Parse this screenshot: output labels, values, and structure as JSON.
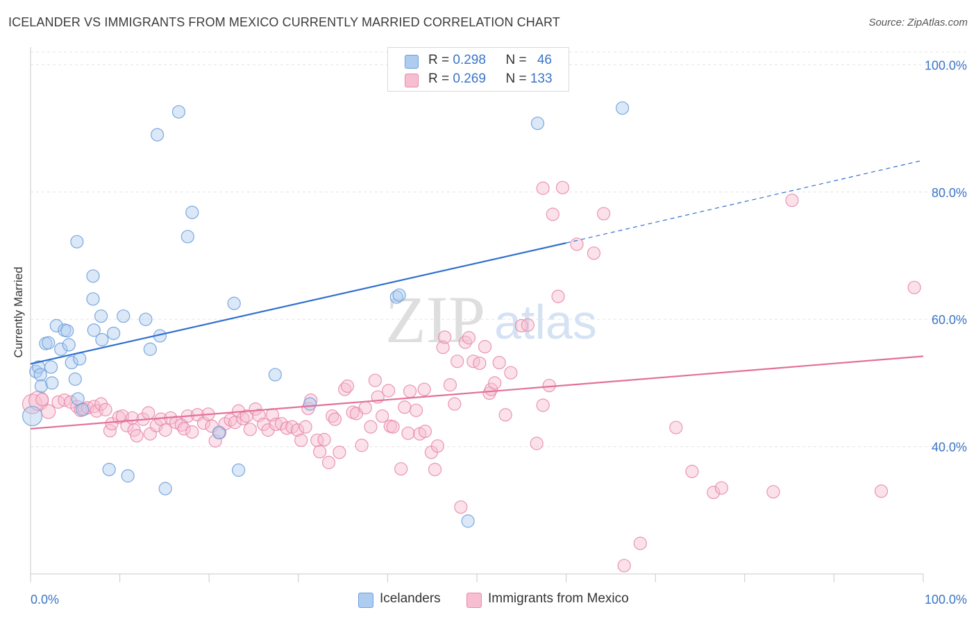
{
  "header": {
    "title": "ICELANDER VS IMMIGRANTS FROM MEXICO CURRENTLY MARRIED CORRELATION CHART",
    "source": "Source: ZipAtlas.com"
  },
  "watermark": {
    "zip": "ZIP",
    "atlas": "atlas"
  },
  "legend": {
    "rows": [
      {
        "r_label": "R = ",
        "r_value": "0.298",
        "n_label": "N = ",
        "n_value": "46",
        "color": "#aecbf0",
        "border": "#6f9fdc"
      },
      {
        "r_label": "R = ",
        "r_value": "0.269",
        "n_label": "N = ",
        "n_value": "133",
        "color": "#f7bdd0",
        "border": "#e88aaa"
      }
    ]
  },
  "bottom_legend": [
    {
      "label": "Icelanders",
      "color": "#aecbf0",
      "border": "#6f9fdc"
    },
    {
      "label": "Immigrants from Mexico",
      "color": "#f7bdd0",
      "border": "#e88aaa"
    }
  ],
  "chart_data": {
    "type": "scatter",
    "title": "ICELANDER VS IMMIGRANTS FROM MEXICO CURRENTLY MARRIED CORRELATION CHART",
    "xlabel": "",
    "ylabel": "Currently Married",
    "x_tick_labels": [
      "0.0%",
      "100.0%"
    ],
    "y_tick_labels": [
      "40.0%",
      "60.0%",
      "80.0%",
      "100.0%"
    ],
    "y_ticks": [
      40,
      60,
      80,
      100
    ],
    "xlim": [
      0,
      100
    ],
    "ylim": [
      20,
      102
    ],
    "grid": "horizontal dashed",
    "legend_position": "top-center",
    "series": [
      {
        "name": "Icelanders",
        "color": "#6f9fdc",
        "fill": "#aecbf0",
        "trend_color": "#2f6fcf",
        "trend": {
          "x0": 0,
          "y0": 53.0,
          "x1": 60,
          "y1": 72.0,
          "dashed_to_x": 100,
          "dashed_to_y": 85.0
        },
        "points": [
          [
            0.2,
            44.8,
            "l"
          ],
          [
            0.6,
            51.8
          ],
          [
            0.9,
            52.5
          ],
          [
            1.1,
            51.3
          ],
          [
            1.2,
            49.5
          ],
          [
            1.7,
            56.2
          ],
          [
            2.0,
            56.3
          ],
          [
            2.3,
            52.5
          ],
          [
            2.4,
            50.0
          ],
          [
            2.9,
            59.0
          ],
          [
            3.4,
            55.3
          ],
          [
            3.8,
            58.3
          ],
          [
            4.1,
            58.2
          ],
          [
            4.3,
            56.0
          ],
          [
            4.6,
            53.2
          ],
          [
            5.0,
            50.6
          ],
          [
            5.3,
            47.5
          ],
          [
            5.5,
            53.8
          ],
          [
            5.8,
            45.8
          ],
          [
            5.2,
            72.2
          ],
          [
            7.0,
            63.2
          ],
          [
            7.0,
            66.8
          ],
          [
            7.1,
            58.3
          ],
          [
            7.9,
            60.5
          ],
          [
            8.0,
            56.8
          ],
          [
            9.3,
            57.8
          ],
          [
            10.4,
            60.5
          ],
          [
            12.9,
            60.0
          ],
          [
            13.4,
            55.3
          ],
          [
            14.2,
            89.0
          ],
          [
            14.5,
            57.4
          ],
          [
            16.6,
            92.6
          ],
          [
            17.6,
            73.0
          ],
          [
            18.1,
            76.8
          ],
          [
            21.1,
            42.2
          ],
          [
            22.8,
            62.5
          ],
          [
            23.3,
            36.3
          ],
          [
            27.4,
            51.3
          ],
          [
            31.3,
            46.7
          ],
          [
            8.8,
            36.4
          ],
          [
            10.9,
            35.4
          ],
          [
            15.1,
            33.4
          ],
          [
            41.0,
            63.5
          ],
          [
            41.3,
            63.8
          ],
          [
            49.0,
            28.3
          ],
          [
            66.3,
            93.2
          ],
          [
            56.8,
            90.8
          ]
        ]
      },
      {
        "name": "Immigrants from Mexico",
        "color": "#e88aaa",
        "fill": "#f7bdd0",
        "trend_color": "#e36f9b",
        "trend": {
          "x0": 0,
          "y0": 42.8,
          "x1": 100,
          "y1": 54.2
        },
        "points": [
          [
            0.2,
            46.7,
            "l"
          ],
          [
            0.9,
            47.2,
            "l"
          ],
          [
            1.3,
            47.4
          ],
          [
            2.0,
            45.5,
            "m"
          ],
          [
            3.1,
            47.0
          ],
          [
            3.8,
            47.3
          ],
          [
            4.5,
            47.0
          ],
          [
            5.2,
            46.3
          ],
          [
            5.6,
            45.7
          ],
          [
            6.0,
            45.9
          ],
          [
            6.4,
            46.1
          ],
          [
            7.1,
            46.3
          ],
          [
            7.4,
            45.6
          ],
          [
            7.9,
            46.7
          ],
          [
            8.4,
            45.8
          ],
          [
            8.9,
            42.5
          ],
          [
            9.1,
            43.6
          ],
          [
            9.9,
            44.6
          ],
          [
            10.3,
            44.8
          ],
          [
            10.8,
            43.3
          ],
          [
            11.4,
            44.5
          ],
          [
            11.6,
            42.6
          ],
          [
            11.9,
            41.7
          ],
          [
            12.6,
            44.3
          ],
          [
            13.2,
            45.3
          ],
          [
            13.4,
            42.0
          ],
          [
            14.1,
            43.3
          ],
          [
            14.6,
            44.3
          ],
          [
            15.1,
            42.6
          ],
          [
            15.7,
            44.5
          ],
          [
            16.3,
            43.8
          ],
          [
            16.9,
            43.4
          ],
          [
            17.2,
            42.8
          ],
          [
            17.6,
            44.8
          ],
          [
            18.1,
            42.3
          ],
          [
            18.7,
            45.0
          ],
          [
            19.4,
            43.7
          ],
          [
            19.9,
            45.1
          ],
          [
            20.3,
            43.2
          ],
          [
            20.7,
            40.9
          ],
          [
            21.2,
            42.2
          ],
          [
            21.8,
            43.6
          ],
          [
            22.4,
            44.2
          ],
          [
            22.9,
            43.8
          ],
          [
            23.3,
            45.6
          ],
          [
            23.8,
            44.4
          ],
          [
            24.2,
            44.8
          ],
          [
            24.6,
            42.7
          ],
          [
            25.2,
            45.9
          ],
          [
            25.6,
            44.9
          ],
          [
            26.1,
            43.5
          ],
          [
            26.6,
            42.6
          ],
          [
            27.1,
            45.0
          ],
          [
            27.5,
            43.5
          ],
          [
            28.1,
            43.6
          ],
          [
            28.7,
            42.9
          ],
          [
            29.3,
            43.1
          ],
          [
            29.9,
            42.6
          ],
          [
            30.3,
            41.0
          ],
          [
            30.8,
            43.1
          ],
          [
            31.1,
            46.0
          ],
          [
            31.4,
            47.3
          ],
          [
            32.1,
            41.0
          ],
          [
            32.4,
            39.2
          ],
          [
            32.9,
            41.1
          ],
          [
            33.4,
            37.5
          ],
          [
            33.8,
            44.8
          ],
          [
            34.1,
            44.3
          ],
          [
            34.6,
            39.1
          ],
          [
            35.2,
            49.0
          ],
          [
            35.5,
            49.5
          ],
          [
            36.1,
            45.4
          ],
          [
            36.5,
            45.2
          ],
          [
            37.1,
            40.2
          ],
          [
            37.5,
            46.1
          ],
          [
            38.1,
            43.1
          ],
          [
            38.6,
            50.4
          ],
          [
            38.9,
            47.8
          ],
          [
            39.4,
            44.8
          ],
          [
            40.1,
            48.8
          ],
          [
            40.3,
            43.2
          ],
          [
            40.6,
            43.1
          ],
          [
            41.5,
            36.5
          ],
          [
            41.9,
            46.2
          ],
          [
            42.3,
            42.1
          ],
          [
            42.5,
            48.7
          ],
          [
            43.2,
            45.7
          ],
          [
            43.6,
            42.0
          ],
          [
            44.1,
            49.0
          ],
          [
            44.2,
            42.4
          ],
          [
            44.9,
            39.1
          ],
          [
            45.3,
            36.4
          ],
          [
            45.6,
            40.1
          ],
          [
            46.2,
            55.6
          ],
          [
            46.4,
            57.2
          ],
          [
            47.0,
            49.7
          ],
          [
            47.5,
            46.7
          ],
          [
            47.8,
            53.4
          ],
          [
            48.2,
            30.5
          ],
          [
            48.7,
            56.4
          ],
          [
            49.1,
            57.1
          ],
          [
            49.6,
            53.4
          ],
          [
            50.3,
            53.1
          ],
          [
            50.9,
            55.7
          ],
          [
            51.4,
            48.4
          ],
          [
            51.6,
            49.0
          ],
          [
            52.0,
            50.0
          ],
          [
            52.5,
            53.2
          ],
          [
            53.2,
            45.0
          ],
          [
            53.8,
            51.6
          ],
          [
            55.0,
            59.0
          ],
          [
            55.7,
            59.1
          ],
          [
            56.7,
            40.5
          ],
          [
            57.4,
            46.5
          ],
          [
            58.1,
            49.6
          ],
          [
            58.5,
            76.5
          ],
          [
            59.1,
            63.6
          ],
          [
            59.6,
            80.7
          ],
          [
            61.2,
            71.8
          ],
          [
            63.1,
            70.4
          ],
          [
            64.2,
            76.6
          ],
          [
            66.5,
            21.3
          ],
          [
            68.3,
            24.8
          ],
          [
            72.3,
            43.0
          ],
          [
            74.1,
            36.1
          ],
          [
            76.5,
            32.8
          ],
          [
            77.4,
            33.5
          ],
          [
            83.2,
            32.9
          ],
          [
            95.3,
            33.0
          ],
          [
            99.0,
            65.0
          ],
          [
            85.3,
            78.7
          ],
          [
            57.4,
            80.6
          ]
        ]
      }
    ]
  }
}
